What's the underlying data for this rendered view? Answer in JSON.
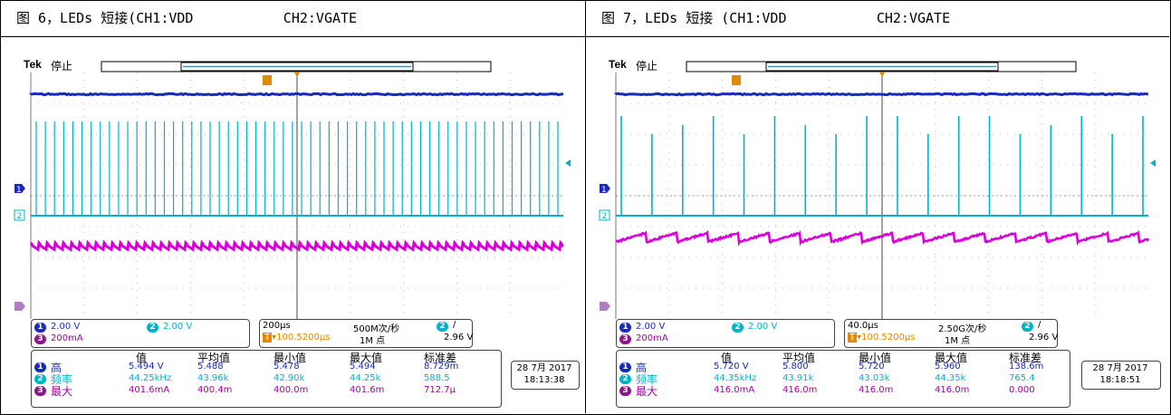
{
  "captions": [
    "图 6，LEDs 短接(CH1:VDD           CH2:VGATE",
    "图 7，LEDs 短接 (CH1:VDD           CH2:VGATE"
  ],
  "colors": {
    "ch1": "#1a2bb8",
    "ch2": "#00b4c8",
    "ch3": "#d800d8",
    "grid": "#7a7a7a"
  },
  "panels": [
    {
      "tek": "Tek",
      "status": "停止",
      "trigger_marker": "T",
      "markers": {
        "ch1": "1",
        "ch2": "2",
        "ch3": "3"
      },
      "ch1_scale": "2.00 V",
      "ch2_scale": "2.00 V",
      "ch3_scale": "200mA",
      "timebase": "200μs",
      "sample_rate": "500M次/秒",
      "record_length": "1M 点",
      "trig_delay": "▾100.5200μs",
      "trig_slope": "/",
      "trig_level": "2.96 V",
      "meas_headers": [
        "值",
        "平均值",
        "最小值",
        "最大值",
        "标准差"
      ],
      "meas_rows": [
        {
          "ch": "1",
          "label": "高",
          "values": [
            "5.494 V",
            "5.488",
            "5.478",
            "5.494",
            "8.729m"
          ]
        },
        {
          "ch": "2",
          "label": "频率",
          "values": [
            "44.25kHz",
            "43.96k",
            "42.90k",
            "44.25k",
            "588.5"
          ]
        },
        {
          "ch": "3",
          "label": "最大",
          "values": [
            "401.6mA",
            "400.4m",
            "400.0m",
            "401.6m",
            "712.7μ"
          ]
        }
      ],
      "date": "28 7月 2017",
      "time": "18:13:38",
      "pulse_count": 58
    },
    {
      "tek": "Tek",
      "status": "停止",
      "trigger_marker": "T",
      "markers": {
        "ch1": "1",
        "ch2": "2",
        "ch3": "3"
      },
      "ch1_scale": "2.00 V",
      "ch2_scale": "2.00 V",
      "ch3_scale": "200mA",
      "timebase": "40.0μs",
      "sample_rate": "2.50G次/秒",
      "record_length": "1M 点",
      "trig_delay": "▾100.5200μs",
      "trig_slope": "/",
      "trig_level": "2.96 V",
      "meas_headers": [
        "值",
        "平均值",
        "最小值",
        "最大值",
        "标准差"
      ],
      "meas_rows": [
        {
          "ch": "1",
          "label": "高",
          "values": [
            "5.720 V",
            "5.800",
            "5.720",
            "5.960",
            "138.6m"
          ]
        },
        {
          "ch": "2",
          "label": "频率",
          "values": [
            "44.35kHz",
            "43.91k",
            "43.03k",
            "44.35k",
            "765.4"
          ]
        },
        {
          "ch": "3",
          "label": "最大",
          "values": [
            "416.0mA",
            "416.0m",
            "416.0m",
            "416.0m",
            "0.000"
          ]
        }
      ],
      "date": "28 7月 2017",
      "time": "18:18:51",
      "pulse_count": 18
    }
  ]
}
